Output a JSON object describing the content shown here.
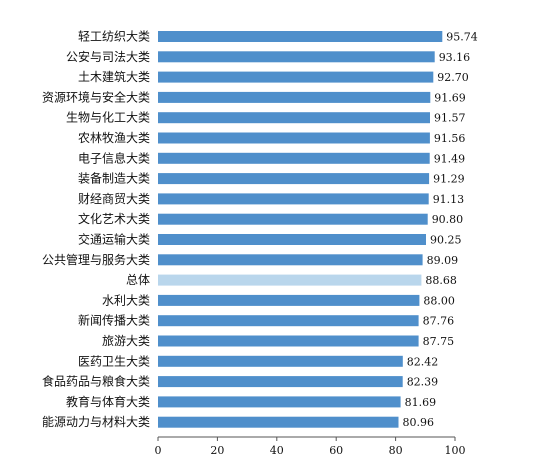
{
  "chart_data": {
    "type": "bar",
    "orientation": "horizontal",
    "categories": [
      "轻工纺织大类",
      "公安与司法大类",
      "土木建筑大类",
      "资源环境与安全大类",
      "生物与化工大类",
      "农林牧渔大类",
      "电子信息大类",
      "装备制造大类",
      "财经商贸大类",
      "文化艺术大类",
      "交通运输大类",
      "公共管理与服务大类",
      "总体",
      "水利大类",
      "新闻传播大类",
      "旅游大类",
      "医药卫生大类",
      "食品药品与粮食大类",
      "教育与体育大类",
      "能源动力与材料大类"
    ],
    "values": [
      95.74,
      93.16,
      92.7,
      91.69,
      91.57,
      91.56,
      91.49,
      91.29,
      91.13,
      90.8,
      90.25,
      89.09,
      88.68,
      88.0,
      87.76,
      87.75,
      82.42,
      82.39,
      81.69,
      80.96
    ],
    "value_labels": [
      "95.74",
      "93.16",
      "92.70",
      "91.69",
      "91.57",
      "91.56",
      "91.49",
      "91.29",
      "91.13",
      "90.80",
      "90.25",
      "89.09",
      "88.68",
      "88.00",
      "87.76",
      "87.75",
      "82.42",
      "82.39",
      "81.69",
      "80.96"
    ],
    "highlight_category": "总体",
    "xlim": [
      0,
      100
    ],
    "xticks": [
      "0",
      "20",
      "40",
      "60",
      "80",
      "100"
    ],
    "grid": false,
    "legend": "none",
    "title": "",
    "xlabel": "",
    "ylabel": "",
    "colors": {
      "bar": "#4f8fcb",
      "highlight_bar": "#b9d6ec",
      "axis": "#555555",
      "text": "#111111"
    }
  }
}
